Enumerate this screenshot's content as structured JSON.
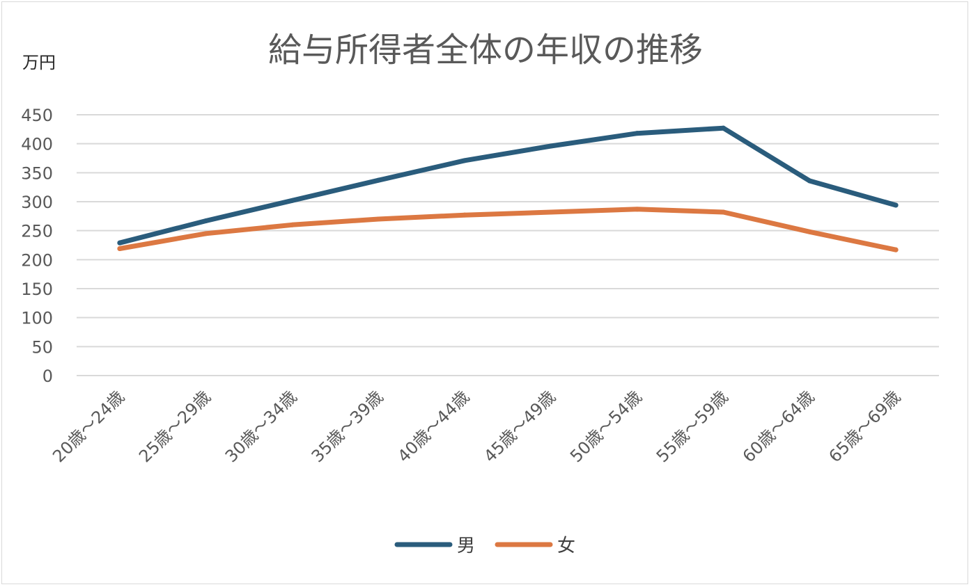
{
  "chart_data": {
    "type": "line",
    "title": "給与所得者全体の年収の推移",
    "ylabel": "万円",
    "xlabel": "",
    "categories": [
      "20歳～24歳",
      "25歳～29歳",
      "30歳～34歳",
      "35歳～39歳",
      "40歳～44歳",
      "45歳～49歳",
      "50歳～54歳",
      "55歳～59歳",
      "60歳～64歳",
      "65歳～69歳"
    ],
    "ylim": [
      0,
      450
    ],
    "yticks": [
      0,
      50,
      100,
      150,
      200,
      250,
      300,
      350,
      400,
      450
    ],
    "grid": true,
    "legend_position": "bottom",
    "series": [
      {
        "name": "男",
        "color": "#2a5c7c",
        "values": [
          229,
          267,
          302,
          337,
          371,
          396,
          418,
          427,
          336,
          294
        ]
      },
      {
        "name": "女",
        "color": "#dc7842",
        "values": [
          219,
          245,
          260,
          270,
          277,
          282,
          287,
          282,
          248,
          217
        ]
      }
    ]
  }
}
